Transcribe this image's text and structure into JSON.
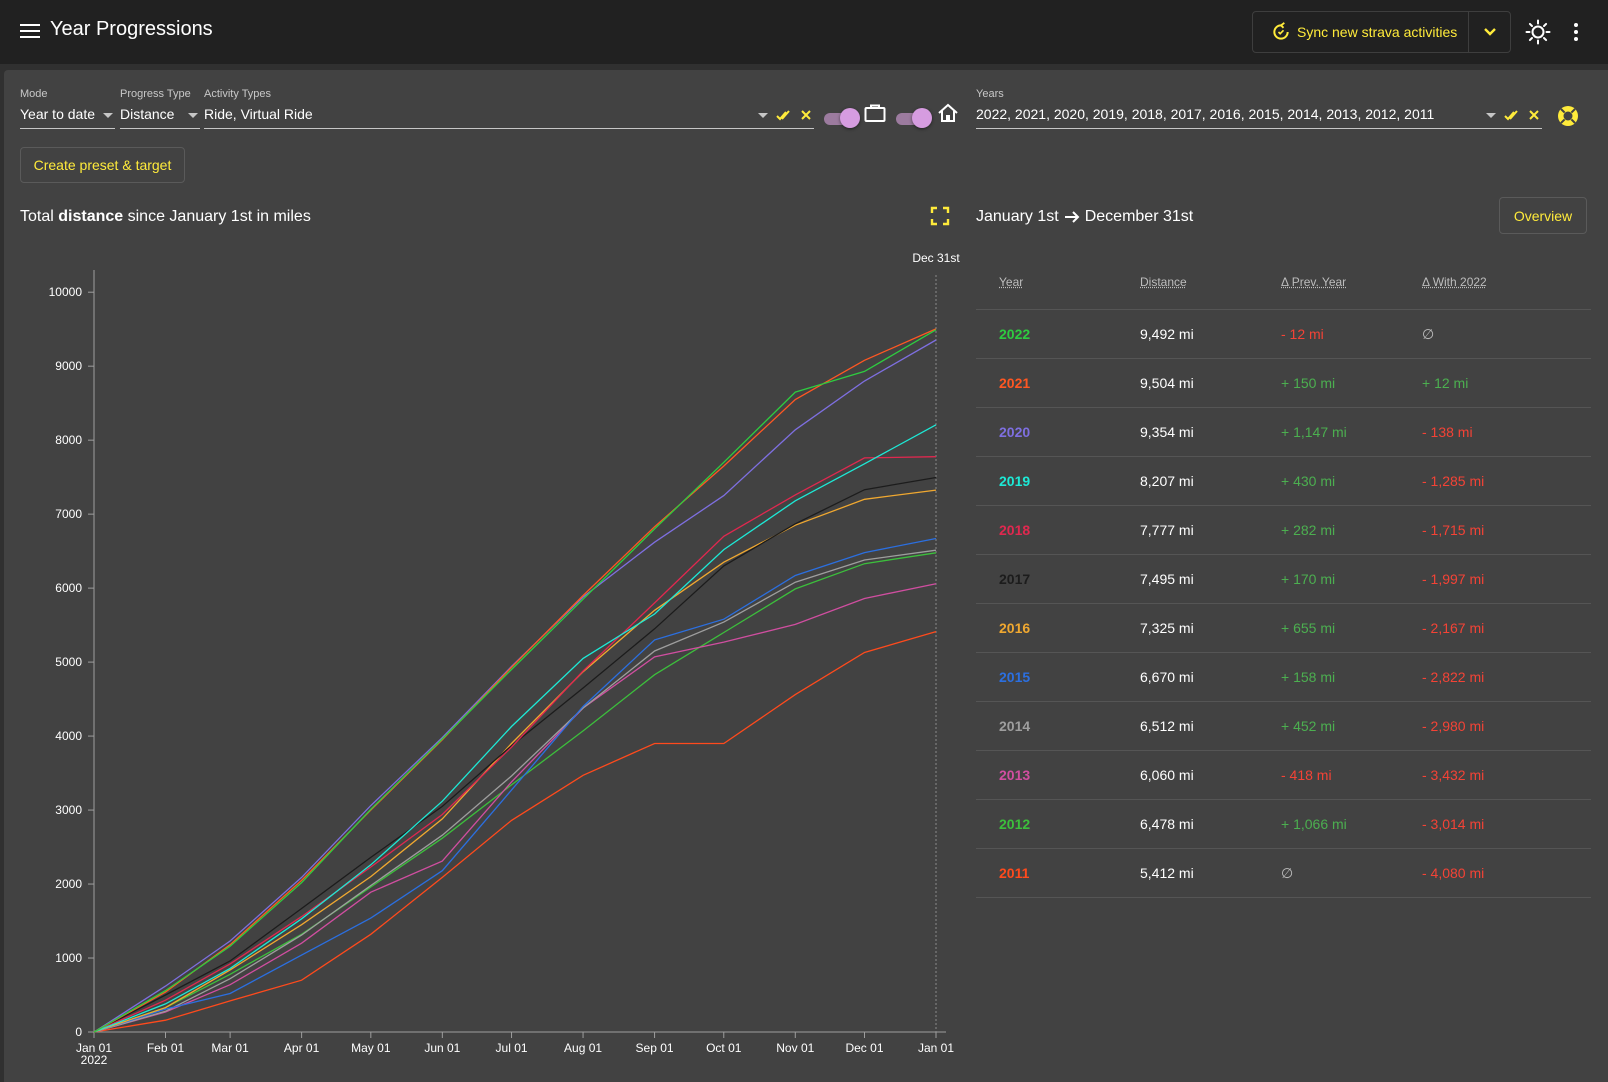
{
  "app": {
    "title": "Year Progressions"
  },
  "toolbar": {
    "sync_label": "Sync new strava activities"
  },
  "filters": {
    "mode": {
      "label": "Mode",
      "value": "Year to date"
    },
    "progress_type": {
      "label": "Progress Type",
      "value": "Distance"
    },
    "activity_types": {
      "label": "Activity Types",
      "value": "Ride, Virtual Ride"
    },
    "years": {
      "label": "Years",
      "value": "2022, 2021, 2020, 2019, 2018, 2017, 2016, 2015, 2014, 2013, 2012, 2011"
    },
    "toggle_commute": true,
    "toggle_home": true
  },
  "preset_button": "Create preset & target",
  "chart": {
    "title_prefix": "Total",
    "title_bold": "distance",
    "title_suffix": "since January 1st in miles",
    "marker_label": "Dec 31st"
  },
  "range": {
    "start": "January 1st",
    "end": "December 31st",
    "overview_label": "Overview"
  },
  "table": {
    "headers": {
      "year": "Year",
      "distance": "Distance",
      "prev": "Δ Prev. Year",
      "with": "Δ With 2022"
    },
    "rows": [
      {
        "year": "2022",
        "distance": "9,492 mi",
        "prev": "- 12 mi",
        "with": "∅",
        "color": "#2ecc40"
      },
      {
        "year": "2021",
        "distance": "9,504 mi",
        "prev": "+ 150 mi",
        "with": "+ 12 mi",
        "color": "#ff5722"
      },
      {
        "year": "2020",
        "distance": "9,354 mi",
        "prev": "+ 1,147 mi",
        "with": "- 138 mi",
        "color": "#7e6fe0"
      },
      {
        "year": "2019",
        "distance": "8,207 mi",
        "prev": "+ 430 mi",
        "with": "- 1,285 mi",
        "color": "#1de9d6"
      },
      {
        "year": "2018",
        "distance": "7,777 mi",
        "prev": "+ 282 mi",
        "with": "- 1,715 mi",
        "color": "#e0284f"
      },
      {
        "year": "2017",
        "distance": "7,495 mi",
        "prev": "+ 170 mi",
        "with": "- 1,997 mi",
        "color": "#1c1c1c"
      },
      {
        "year": "2016",
        "distance": "7,325 mi",
        "prev": "+ 655 mi",
        "with": "- 2,167 mi",
        "color": "#f0a830"
      },
      {
        "year": "2015",
        "distance": "6,670 mi",
        "prev": "+ 158 mi",
        "with": "- 2,822 mi",
        "color": "#2b6fe0"
      },
      {
        "year": "2014",
        "distance": "6,512 mi",
        "prev": "+ 452 mi",
        "with": "- 2,980 mi",
        "color": "#9e9e9e"
      },
      {
        "year": "2013",
        "distance": "6,060 mi",
        "prev": "- 418 mi",
        "with": "- 3,432 mi",
        "color": "#d04ea0"
      },
      {
        "year": "2012",
        "distance": "6,478 mi",
        "prev": "+ 1,066 mi",
        "with": "- 3,014 mi",
        "color": "#3cbf3c"
      },
      {
        "year": "2011",
        "distance": "5,412 mi",
        "prev": "∅",
        "with": "- 4,080 mi",
        "color": "#ff4a1c"
      }
    ]
  },
  "colors": {
    "accent": "#ffeb3b",
    "positive": "#4caf50",
    "negative": "#f44336",
    "neutral": "#bdbdbd"
  },
  "chart_data": {
    "type": "line",
    "xlabel": "",
    "ylabel": "",
    "x_ticks": [
      "Jan 01",
      "Feb 01",
      "Mar 01",
      "Apr 01",
      "May 01",
      "Jun 01",
      "Jul 01",
      "Aug 01",
      "Sep 01",
      "Oct 01",
      "Nov 01",
      "Dec 01",
      "Jan 01"
    ],
    "x_year_label": "2022",
    "y_ticks": [
      0,
      1000,
      2000,
      3000,
      4000,
      5000,
      6000,
      7000,
      8000,
      9000,
      10000
    ],
    "ylim": [
      0,
      10300
    ],
    "x_days_total": 365,
    "grid": false,
    "series": [
      {
        "name": "2022",
        "color": "#2ecc40",
        "x": [
          0,
          31,
          59,
          90,
          120,
          151,
          181,
          212,
          243,
          273,
          304,
          334,
          365
        ],
        "y": [
          0,
          560,
          1160,
          2020,
          3010,
          3960,
          4900,
          5850,
          6800,
          7700,
          8650,
          8930,
          9492
        ]
      },
      {
        "name": "2021",
        "color": "#ff5722",
        "x": [
          0,
          31,
          59,
          90,
          120,
          151,
          181,
          212,
          243,
          273,
          304,
          334,
          365
        ],
        "y": [
          0,
          540,
          1180,
          2050,
          3000,
          3950,
          4930,
          5900,
          6830,
          7650,
          8550,
          9080,
          9504
        ]
      },
      {
        "name": "2020",
        "color": "#7e6fe0",
        "x": [
          0,
          31,
          59,
          90,
          120,
          151,
          181,
          212,
          243,
          273,
          304,
          334,
          365
        ],
        "y": [
          0,
          620,
          1230,
          2090,
          3060,
          3980,
          4940,
          5880,
          6620,
          7250,
          8140,
          8800,
          9354
        ]
      },
      {
        "name": "2019",
        "color": "#1de9d6",
        "x": [
          0,
          31,
          59,
          90,
          120,
          151,
          181,
          212,
          243,
          273,
          304,
          334,
          365
        ],
        "y": [
          0,
          380,
          860,
          1530,
          2260,
          3120,
          4130,
          5050,
          5650,
          6520,
          7180,
          7680,
          8207
        ]
      },
      {
        "name": "2018",
        "color": "#e0284f",
        "x": [
          0,
          31,
          59,
          90,
          120,
          151,
          181,
          212,
          243,
          273,
          304,
          334,
          365
        ],
        "y": [
          0,
          430,
          920,
          1560,
          2230,
          2940,
          3850,
          4880,
          5800,
          6700,
          7260,
          7760,
          7777
        ]
      },
      {
        "name": "2017",
        "color": "#1c1c1c",
        "x": [
          0,
          31,
          59,
          90,
          120,
          151,
          181,
          212,
          243,
          273,
          304,
          334,
          365
        ],
        "y": [
          0,
          500,
          960,
          1670,
          2360,
          3050,
          3870,
          4650,
          5450,
          6300,
          6870,
          7330,
          7495
        ]
      },
      {
        "name": "2016",
        "color": "#f0a830",
        "x": [
          0,
          31,
          59,
          90,
          120,
          151,
          181,
          212,
          243,
          273,
          304,
          334,
          365
        ],
        "y": [
          0,
          330,
          840,
          1450,
          2100,
          2880,
          3900,
          4870,
          5700,
          6350,
          6850,
          7200,
          7325
        ]
      },
      {
        "name": "2015",
        "color": "#2b6fe0",
        "x": [
          0,
          31,
          59,
          90,
          120,
          151,
          181,
          212,
          243,
          273,
          304,
          334,
          365
        ],
        "y": [
          0,
          310,
          520,
          1040,
          1540,
          2180,
          3270,
          4400,
          5300,
          5580,
          6170,
          6480,
          6670
        ]
      },
      {
        "name": "2014",
        "color": "#9e9e9e",
        "x": [
          0,
          31,
          59,
          90,
          120,
          151,
          181,
          212,
          243,
          273,
          304,
          334,
          365
        ],
        "y": [
          0,
          280,
          720,
          1310,
          1980,
          2660,
          3460,
          4380,
          5150,
          5540,
          6080,
          6380,
          6512
        ]
      },
      {
        "name": "2013",
        "color": "#d04ea0",
        "x": [
          0,
          31,
          59,
          90,
          120,
          151,
          181,
          212,
          243,
          273,
          304,
          334,
          365
        ],
        "y": [
          0,
          270,
          640,
          1200,
          1890,
          2310,
          3380,
          4380,
          5070,
          5270,
          5510,
          5860,
          6060
        ]
      },
      {
        "name": "2012",
        "color": "#3cbf3c",
        "x": [
          0,
          31,
          59,
          90,
          120,
          151,
          181,
          212,
          243,
          273,
          304,
          334,
          365
        ],
        "y": [
          0,
          330,
          780,
          1320,
          1960,
          2620,
          3340,
          4070,
          4830,
          5400,
          5990,
          6330,
          6478
        ]
      },
      {
        "name": "2011",
        "color": "#ff4a1c",
        "x": [
          0,
          31,
          59,
          90,
          120,
          151,
          181,
          212,
          243,
          273,
          304,
          334,
          365
        ],
        "y": [
          0,
          160,
          420,
          700,
          1320,
          2090,
          2860,
          3470,
          3900,
          3900,
          4560,
          5130,
          5412
        ]
      }
    ]
  }
}
